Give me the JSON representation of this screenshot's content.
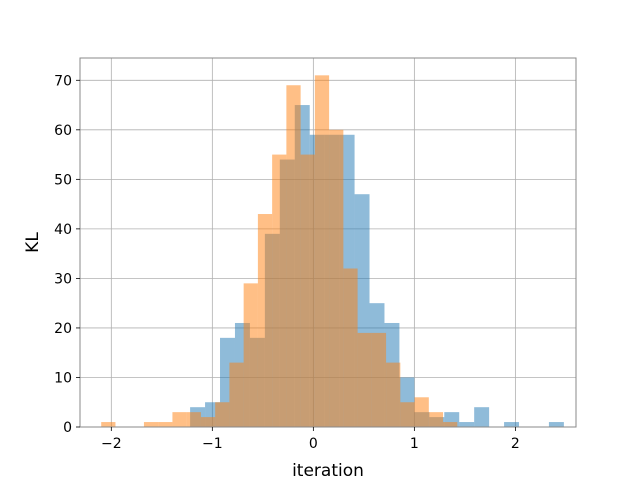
{
  "chart_data": {
    "type": "bar",
    "title": "",
    "xlabel": "iteration",
    "ylabel": "KL",
    "xlim": [
      -2.31,
      2.6
    ],
    "ylim": [
      0,
      74.5
    ],
    "x_ticks": [
      -2,
      -1,
      0,
      1,
      2
    ],
    "y_ticks": [
      0,
      10,
      20,
      30,
      40,
      50,
      60,
      70
    ],
    "grid": true,
    "legend": "none",
    "series": [
      {
        "color": "#1f77b4",
        "opacity": 0.5,
        "bin_width": 0.148,
        "bin_edges": [
          -1.22,
          -1.072,
          -0.924,
          -0.776,
          -0.628,
          -0.48,
          -0.332,
          -0.184,
          -0.036,
          0.112,
          0.26,
          0.408,
          0.556,
          0.704,
          0.852,
          1.0,
          1.148,
          1.296,
          1.444,
          1.592,
          1.74,
          1.888,
          2.036,
          2.184,
          2.332
        ],
        "counts": [
          4,
          5,
          18,
          21,
          18,
          39,
          54,
          65,
          59,
          59,
          59,
          47,
          25,
          21,
          10,
          3,
          2,
          3,
          1,
          4,
          0,
          1,
          0,
          0,
          1
        ]
      },
      {
        "color": "#ff7f0e",
        "opacity": 0.5,
        "bin_width": 0.141,
        "bin_edges": [
          -2.1,
          -1.959,
          -1.818,
          -1.677,
          -1.536,
          -1.395,
          -1.254,
          -1.113,
          -0.972,
          -0.831,
          -0.69,
          -0.549,
          -0.408,
          -0.267,
          -0.126,
          0.015,
          0.156,
          0.297,
          0.438,
          0.579,
          0.72,
          0.861,
          1.002,
          1.143,
          1.284
        ],
        "counts": [
          1,
          0,
          0,
          1,
          1,
          3,
          3,
          2,
          5,
          13,
          29,
          43,
          55,
          69,
          55,
          71,
          60,
          32,
          19,
          19,
          13,
          5,
          6,
          3,
          1
        ]
      }
    ]
  }
}
